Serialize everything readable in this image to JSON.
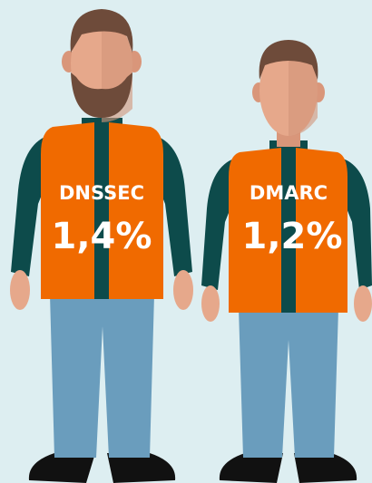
{
  "figures": [
    {
      "label": "DNSSEC",
      "value": "1,4%"
    },
    {
      "label": "DMARC",
      "value": "1,2%"
    }
  ]
}
